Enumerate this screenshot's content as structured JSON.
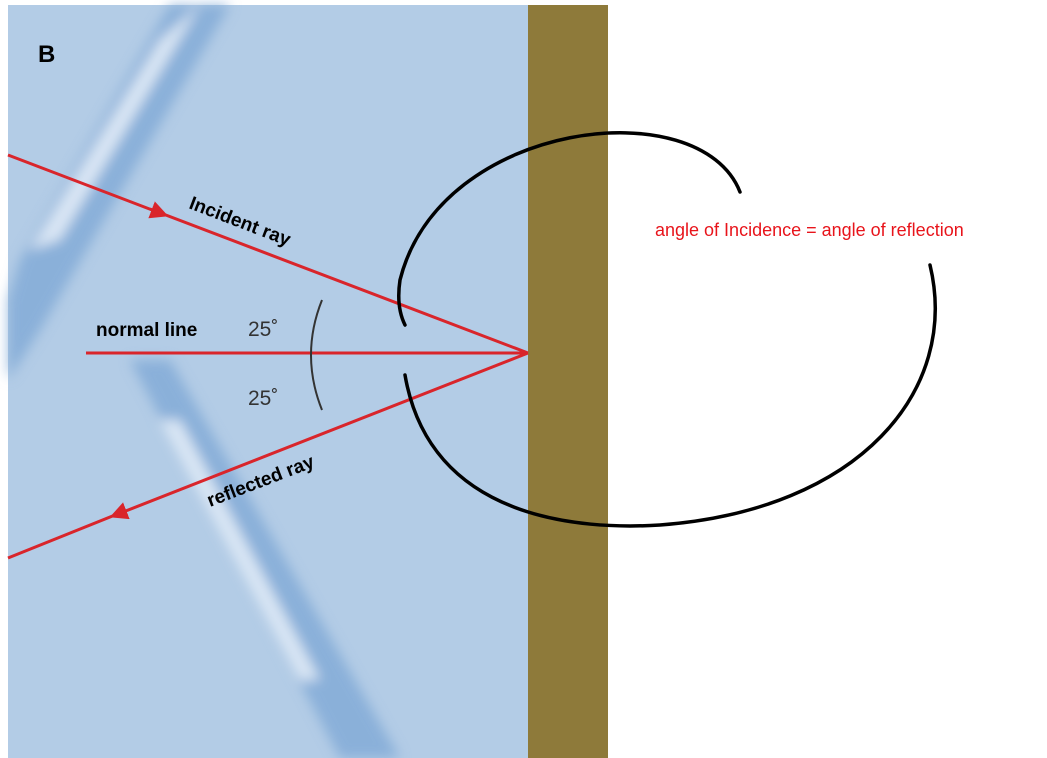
{
  "panel_label": "B",
  "labels": {
    "incident": "Incident ray",
    "normal": "normal line",
    "reflected": "reflected ray"
  },
  "angles": {
    "incidence": "25˚",
    "reflection": "25˚"
  },
  "annotation": "angle of Incidence = angle of reflection"
}
